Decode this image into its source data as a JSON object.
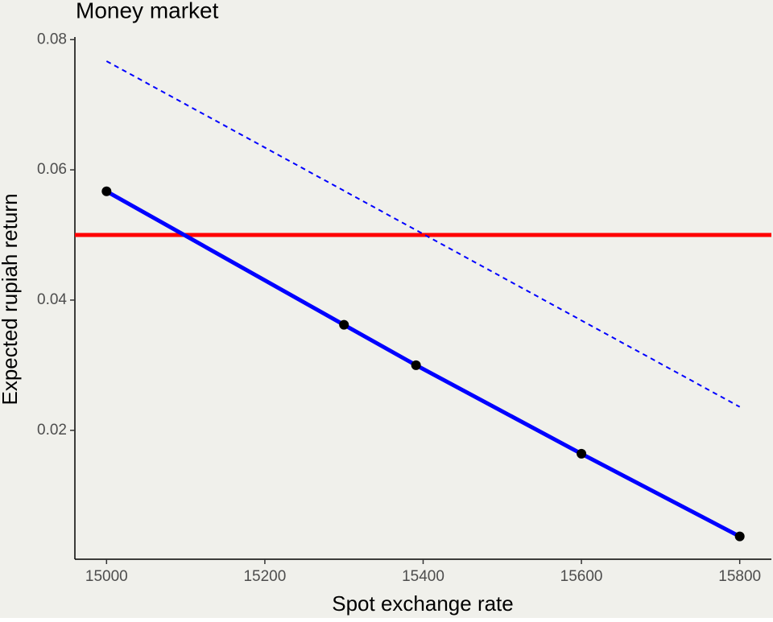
{
  "chart_data": {
    "type": "line",
    "title": "Money market",
    "x_label": "Spot exchange rate",
    "y_label": "Expected rupiah return",
    "series": [
      {
        "x": [
          15000,
          15300,
          15391,
          15600,
          15800
        ],
        "values": [
          0.0567,
          0.0362,
          0.03,
          0.0164,
          0.0037
        ],
        "color": "blue",
        "line_width": 5,
        "dashed": false,
        "markers": true,
        "marker_color": "black"
      },
      {
        "x": [
          15000,
          15800
        ],
        "values": [
          0.0767,
          0.0236
        ],
        "color": "blue",
        "line_width": 2,
        "dashed": true,
        "markers": false
      }
    ],
    "hline": {
      "value": 0.05,
      "color": "red",
      "line_width": 5
    },
    "xlim": [
      14960,
      15840
    ],
    "ylim": [
      0.0002,
      0.0804
    ],
    "xticks": [
      15000,
      15200,
      15400,
      15600,
      15800
    ],
    "yticks": [
      0.02,
      0.04,
      0.06,
      0.08
    ],
    "grid": false,
    "background": "#f0f0eb"
  }
}
